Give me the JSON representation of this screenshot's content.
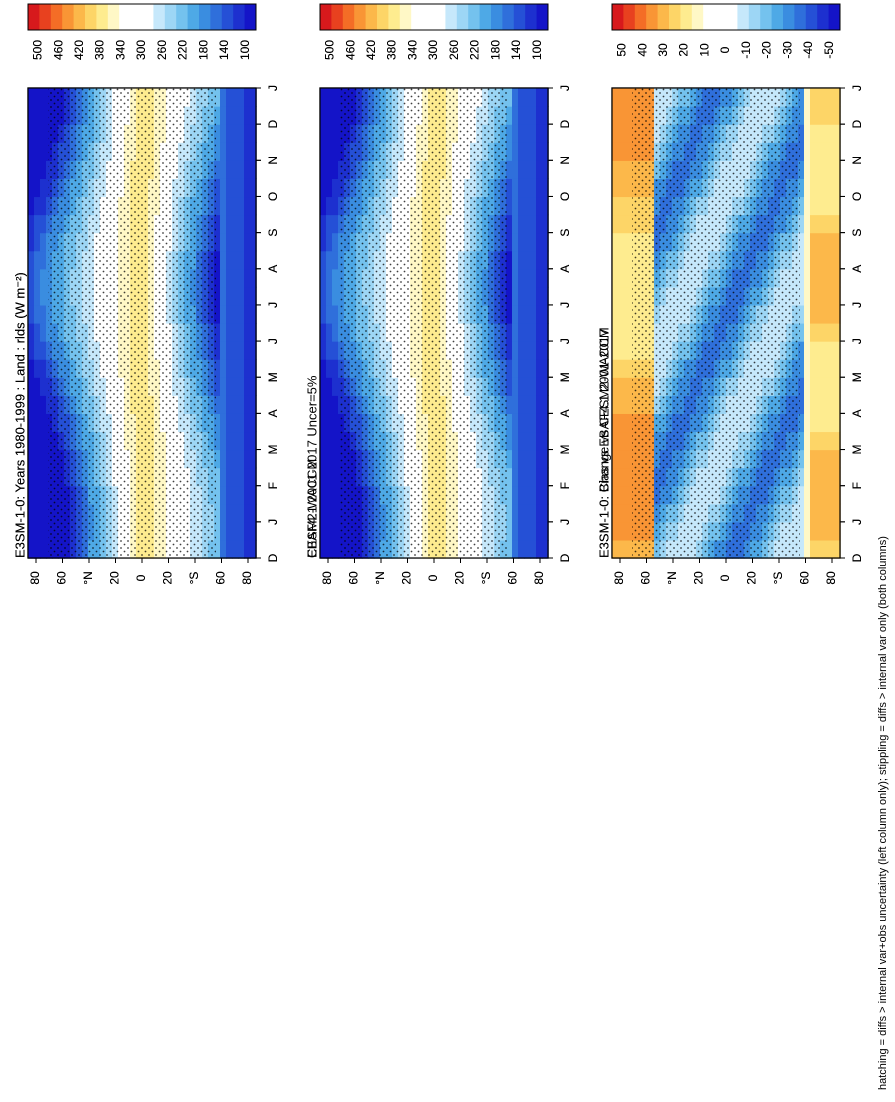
{
  "footer": "hatching = diffs > internal var+obs uncertainty (left column only); stippling = diffs > internal var only (both columns)",
  "chart_data": [
    {
      "type": "heatmap",
      "panel": "left-top",
      "title": "E3SM-1-0: Years 1980-1999 : Land : rlds (W m⁻²)",
      "x_ticks": [
        "D",
        "J",
        "F",
        "M",
        "A",
        "M",
        "J",
        "J",
        "A",
        "S",
        "O",
        "N",
        "D",
        "J"
      ],
      "y_ticks": [
        "80",
        "60",
        "°N",
        "20",
        "0",
        "20",
        "°S",
        "60",
        "80"
      ],
      "colorbar": [
        "500",
        "460",
        "420",
        "380",
        "340",
        "300",
        "260",
        "220",
        "180",
        "140",
        "100"
      ],
      "kind": "field"
    },
    {
      "type": "heatmap",
      "panel": "right-top",
      "title": "E3SM-1-0: Years 1980-1999 : Land : rlds (W m⁻²)",
      "x_ticks": [
        "D",
        "J",
        "F",
        "M",
        "A",
        "M",
        "J",
        "J",
        "A",
        "S",
        "O",
        "N",
        "D",
        "J"
      ],
      "y_ticks": [
        "80",
        "60",
        "°N",
        "20",
        "0",
        "20",
        "°S",
        "60",
        "80"
      ],
      "colorbar": [
        "500",
        "460",
        "420",
        "380",
        "340",
        "300",
        "260",
        "220",
        "180",
        "140",
        "100"
      ],
      "kind": "field"
    },
    {
      "type": "heatmap",
      "panel": "left-middle",
      "title": "EBAF4.1 2001-2017 Uncer=5%",
      "x_ticks": [
        "D",
        "J",
        "F",
        "M",
        "A",
        "M",
        "J",
        "J",
        "A",
        "S",
        "O",
        "N",
        "D",
        "J"
      ],
      "y_ticks": [
        "80",
        "60",
        "°N",
        "20",
        "0",
        "20",
        "°S",
        "60",
        "80"
      ],
      "colorbar": [
        "500",
        "460",
        "420",
        "380",
        "340",
        "300",
        "260",
        "220",
        "180",
        "140",
        "100"
      ],
      "kind": "field"
    },
    {
      "type": "heatmap",
      "panel": "right-middle",
      "title": "CESM2-WACCM",
      "x_ticks": [
        "D",
        "J",
        "F",
        "M",
        "A",
        "M",
        "J",
        "J",
        "A",
        "S",
        "O",
        "N",
        "D",
        "J"
      ],
      "y_ticks": [
        "80",
        "60",
        "°N",
        "20",
        "0",
        "20",
        "°S",
        "60",
        "80"
      ],
      "colorbar": [
        "500",
        "460",
        "420",
        "380",
        "340",
        "300",
        "260",
        "220",
        "180",
        "140",
        "100"
      ],
      "kind": "field"
    },
    {
      "type": "heatmap",
      "panel": "left-bottom",
      "title": "E3SM-1-0: Bias vs EBAF4.1 2001-2017",
      "x_ticks": [
        "D",
        "J",
        "F",
        "M",
        "A",
        "M",
        "J",
        "J",
        "A",
        "S",
        "O",
        "N",
        "D",
        "J"
      ],
      "y_ticks": [
        "80",
        "60",
        "°N",
        "20",
        "0",
        "20",
        "°S",
        "60",
        "80"
      ],
      "colorbar": [
        "50",
        "40",
        "30",
        "20",
        "10",
        "0",
        "-10",
        "-20",
        "-30",
        "-40",
        "-50"
      ],
      "kind": "diff"
    },
    {
      "type": "heatmap",
      "panel": "right-bottom",
      "title": "E3SM-1-0: Change vs CESM2-WACCM",
      "x_ticks": [
        "D",
        "J",
        "F",
        "M",
        "A",
        "M",
        "J",
        "J",
        "A",
        "S",
        "O",
        "N",
        "D",
        "J"
      ],
      "y_ticks": [
        "80",
        "60",
        "°N",
        "20",
        "0",
        "20",
        "°S",
        "60",
        "80"
      ],
      "colorbar": [
        "50",
        "40",
        "30",
        "20",
        "10",
        "0",
        "-10",
        "-20",
        "-30",
        "-40",
        "-50"
      ],
      "kind": "diff"
    }
  ],
  "colors": {
    "scale": [
      "#d7191c",
      "#e8411f",
      "#f46d26",
      "#f99535",
      "#fcb84a",
      "#fdd567",
      "#feec8f",
      "#fff8c6",
      "#ffffff",
      "#ffffff",
      "#c6e8fb",
      "#9dd6f5",
      "#74c2ee",
      "#4ea9e6",
      "#3a8de0",
      "#2f6fdb",
      "#2550d6",
      "#1d30cf",
      "#1414c8"
    ]
  }
}
